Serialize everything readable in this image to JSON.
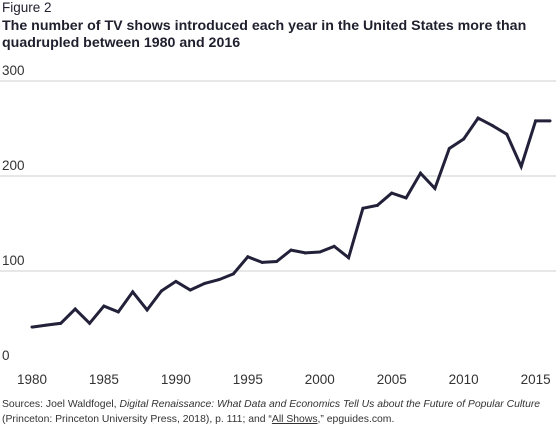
{
  "figure_label": "Figure 2",
  "title": "The number of TV shows introduced each year in the United States more than quadrupled between 1980 and 2016",
  "source": {
    "prefix": "Sources: Joel Waldfogel, ",
    "book_title": "Digital Renaissance: What Data and Economics Tell Us about the Future of Popular Culture",
    "middle": " (Princeton: Princeton University Press, 2018), p. 111; and “",
    "link_text": "All Shows",
    "suffix": ",” epguides.com."
  },
  "colors": {
    "line": "#23213a",
    "grid": "#cfcfcf",
    "text": "#1f1f2e"
  },
  "chart_data": {
    "type": "line",
    "title": "The number of TV shows introduced each year in the United States more than quadrupled between 1980 and 2016",
    "xlabel": "",
    "ylabel": "",
    "xlim": [
      1980,
      2016
    ],
    "ylim": [
      0,
      300
    ],
    "grid": true,
    "x_ticks": [
      1980,
      1985,
      1990,
      1995,
      2000,
      2005,
      2010,
      2015
    ],
    "y_ticks": [
      0,
      100,
      200,
      300
    ],
    "x": [
      1980,
      1981,
      1982,
      1983,
      1984,
      1985,
      1986,
      1987,
      1988,
      1989,
      1990,
      1991,
      1992,
      1993,
      1994,
      1995,
      1996,
      1997,
      1998,
      1999,
      2000,
      2001,
      2002,
      2003,
      2004,
      2005,
      2006,
      2007,
      2008,
      2009,
      2010,
      2011,
      2012,
      2013,
      2014,
      2015,
      2016
    ],
    "values": [
      41,
      43,
      45,
      60,
      45,
      63,
      57,
      78,
      59,
      79,
      89,
      80,
      87,
      91,
      97,
      115,
      109,
      110,
      122,
      119,
      120,
      126,
      114,
      166,
      169,
      182,
      177,
      203,
      187,
      229,
      239,
      261,
      253,
      244,
      210,
      258,
      258
    ]
  }
}
